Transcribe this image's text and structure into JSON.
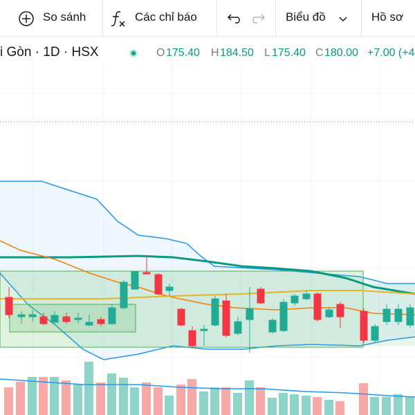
{
  "toolbar": {
    "compare": "So sánh",
    "indicators": "Các chỉ báo",
    "chart_type": "Biểu đồ",
    "profile": "Hồ sơ"
  },
  "legend": {
    "symbol": "i Gòn · 1D · HSX",
    "open_label": "O",
    "open": "175.40",
    "high_label": "H",
    "high": "184.50",
    "low_label": "L",
    "low": "175.40",
    "close_label": "C",
    "close": "180.00",
    "change": "+7.00 (+4"
  }
}
